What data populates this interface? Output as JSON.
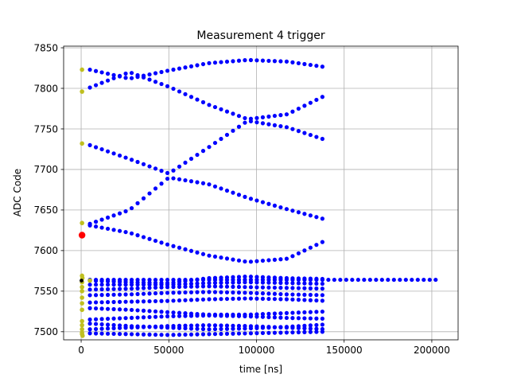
{
  "chart_data": {
    "type": "scatter",
    "title": "Measurement 4 trigger",
    "xlabel": "time [ns]",
    "ylabel": "ADC Code",
    "xlim": [
      -10000,
      215000
    ],
    "ylim": [
      7490,
      7852
    ],
    "xticks": [
      0,
      50000,
      100000,
      150000,
      200000
    ],
    "yticks": [
      7500,
      7550,
      7600,
      7650,
      7700,
      7750,
      7800,
      7850
    ],
    "grid": true,
    "colors": {
      "main": "#0000ff",
      "start": "#bfbf20",
      "marker": "#ff0000",
      "origin": "#000000",
      "grid": "#b0b0b0"
    },
    "series": [
      {
        "color_key": "main",
        "curves": [
          {
            "x_start": 5000,
            "x_end": 140000,
            "y": [
              7823,
              7812,
              7822,
              7831,
              7835,
              7833,
              7826
            ]
          },
          {
            "x_start": 5000,
            "x_end": 140000,
            "y": [
              7801,
              7820,
              7802,
              7780,
              7762,
              7768,
              7792
            ]
          },
          {
            "x_start": 5000,
            "x_end": 140000,
            "y": [
              7730,
              7713,
              7695,
              7727,
              7760,
              7752,
              7736
            ]
          },
          {
            "x_start": 5000,
            "x_end": 140000,
            "y": [
              7633,
              7650,
              7690,
              7682,
              7665,
              7651,
              7638
            ]
          },
          {
            "x_start": 5000,
            "x_end": 140000,
            "y": [
              7631,
              7622,
              7607,
              7594,
              7586,
              7590,
              7613
            ]
          },
          {
            "x_start": 5000,
            "x_end": 205000,
            "y": [
              7564,
              7564,
              7564,
              7564,
              7564,
              7564,
              7564,
              7564,
              7564
            ]
          },
          {
            "x_start": 5000,
            "x_end": 140000,
            "y": [
              7563,
              7561,
              7560,
              7566,
              7568,
              7566,
              7565
            ]
          },
          {
            "x_start": 5000,
            "x_end": 140000,
            "y": [
              7558,
              7558,
              7558,
              7560,
              7561,
              7560,
              7559
            ]
          },
          {
            "x_start": 5000,
            "x_end": 140000,
            "y": [
              7552,
              7553,
              7555,
              7556,
              7555,
              7554,
              7553
            ]
          },
          {
            "x_start": 5000,
            "x_end": 140000,
            "y": [
              7545,
              7546,
              7548,
              7549,
              7548,
              7546,
              7545
            ]
          },
          {
            "x_start": 5000,
            "x_end": 140000,
            "y": [
              7536,
              7537,
              7538,
              7540,
              7541,
              7540,
              7538
            ]
          },
          {
            "x_start": 5000,
            "x_end": 140000,
            "y": [
              7529,
              7527,
              7524,
              7521,
              7521,
              7523,
              7525
            ]
          },
          {
            "x_start": 5000,
            "x_end": 140000,
            "y": [
              7515,
              7517,
              7519,
              7520,
              7519,
              7517,
              7516
            ]
          },
          {
            "x_start": 5000,
            "x_end": 140000,
            "y": [
              7510,
              7507,
              7505,
              7503,
              7504,
              7506,
              7509
            ]
          },
          {
            "x_start": 5000,
            "x_end": 140000,
            "y": [
              7503,
              7505,
              7507,
              7508,
              7507,
              7505,
              7503
            ]
          },
          {
            "x_start": 5000,
            "x_end": 140000,
            "y": [
              7498,
              7497,
              7496,
              7497,
              7498,
              7499,
              7500
            ]
          }
        ]
      },
      {
        "color_key": "start",
        "points": [
          {
            "x": 500,
            "y": 7823
          },
          {
            "x": 500,
            "y": 7796
          },
          {
            "x": 500,
            "y": 7732
          },
          {
            "x": 500,
            "y": 7634
          },
          {
            "x": 500,
            "y": 7569
          },
          {
            "x": 700,
            "y": 7566
          },
          {
            "x": 500,
            "y": 7561
          },
          {
            "x": 500,
            "y": 7555
          },
          {
            "x": 500,
            "y": 7550
          },
          {
            "x": 500,
            "y": 7542
          },
          {
            "x": 500,
            "y": 7535
          },
          {
            "x": 500,
            "y": 7527
          },
          {
            "x": 500,
            "y": 7513
          },
          {
            "x": 500,
            "y": 7508
          },
          {
            "x": 500,
            "y": 7503
          },
          {
            "x": 500,
            "y": 7499
          },
          {
            "x": 500,
            "y": 7497
          },
          {
            "x": 800,
            "y": 7495
          },
          {
            "x": 5000,
            "y": 7563
          }
        ]
      },
      {
        "color_key": "marker",
        "points": [
          {
            "x": 500,
            "y": 7619
          }
        ]
      },
      {
        "color_key": "origin",
        "points": [
          {
            "x": 200,
            "y": 7563
          }
        ]
      }
    ]
  }
}
